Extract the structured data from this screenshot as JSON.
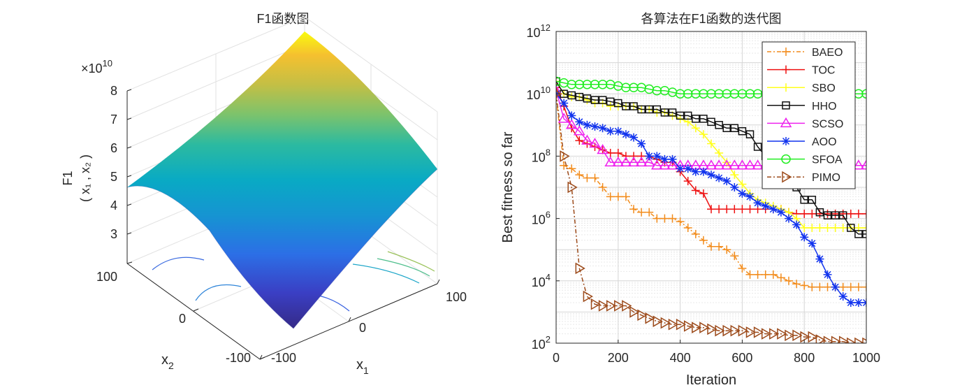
{
  "chart_data": [
    {
      "type": "surface",
      "title": "F1函数图",
      "xlabel": "x",
      "xlabel_sub": "1",
      "ylabel": "x",
      "ylabel_sub": "2",
      "zlabel_top": "F1",
      "zlabel_bottom": "( x₁ , x₂ )",
      "zscale": "×10",
      "zscale_exp": "10",
      "xticks": [
        "-100",
        "0",
        "100"
      ],
      "yticks": [
        "-100",
        "0",
        "100"
      ],
      "zticks": [
        "3",
        "4",
        "5",
        "6",
        "7",
        "8"
      ],
      "xlim": [
        -100,
        100
      ],
      "ylim": [
        -100,
        100
      ],
      "colormap": "parula"
    },
    {
      "type": "line",
      "title": "各算法在F1函数的迭代图",
      "xlabel": "Iteration",
      "ylabel": "Best fitness so far",
      "xlim": [
        0,
        1000
      ],
      "ylim_exp": [
        2,
        12
      ],
      "yscale": "log",
      "grid": true,
      "legend_position": "top-right",
      "xticks": [
        "0",
        "200",
        "400",
        "600",
        "800",
        "1000"
      ],
      "yticks": [
        {
          "base": "10",
          "exp": "2"
        },
        {
          "base": "10",
          "exp": "4"
        },
        {
          "base": "10",
          "exp": "6"
        },
        {
          "base": "10",
          "exp": "8"
        },
        {
          "base": "10",
          "exp": "10"
        },
        {
          "base": "10",
          "exp": "12"
        }
      ],
      "series": [
        {
          "name": "BAEO",
          "color": "#f28c1c",
          "marker": "plus",
          "dash": "6,3,2,3",
          "x": [
            0,
            25,
            50,
            75,
            100,
            125,
            150,
            175,
            200,
            225,
            250,
            275,
            300,
            325,
            350,
            375,
            400,
            425,
            450,
            475,
            500,
            525,
            550,
            575,
            600,
            625,
            650,
            675,
            700,
            725,
            750,
            775,
            800,
            825,
            850,
            875,
            900,
            925,
            950,
            975,
            1000
          ],
          "log10": [
            9.9,
            7.7,
            7.6,
            7.4,
            7.3,
            7.3,
            7.0,
            6.7,
            6.7,
            6.7,
            6.3,
            6.2,
            6.2,
            6.0,
            6.0,
            6.0,
            5.9,
            5.7,
            5.5,
            5.3,
            5.1,
            5.1,
            5.0,
            4.8,
            4.4,
            4.2,
            4.2,
            4.2,
            4.2,
            4.1,
            4.0,
            3.9,
            3.85,
            3.8,
            3.8,
            3.8,
            3.8,
            3.8,
            3.8,
            3.8,
            3.8
          ]
        },
        {
          "name": "TOC",
          "color": "#ee1111",
          "marker": "plus",
          "dash": "",
          "x": [
            0,
            25,
            50,
            75,
            100,
            125,
            150,
            175,
            200,
            225,
            250,
            275,
            300,
            325,
            350,
            375,
            400,
            425,
            450,
            475,
            500,
            525,
            550,
            575,
            600,
            625,
            650,
            675,
            700,
            725,
            750,
            775,
            800,
            825,
            850,
            875,
            900,
            925,
            950,
            975,
            1000
          ],
          "log10": [
            10.2,
            9.6,
            8.9,
            8.5,
            8.4,
            8.3,
            8.2,
            8.1,
            8.1,
            8.0,
            8.0,
            8.0,
            8.0,
            7.9,
            7.8,
            7.8,
            7.5,
            7.2,
            6.9,
            6.8,
            6.3,
            6.3,
            6.3,
            6.3,
            6.3,
            6.3,
            6.3,
            6.3,
            6.3,
            6.3,
            6.2,
            6.15,
            6.15,
            6.15,
            6.15,
            6.15,
            6.15,
            6.15,
            6.15,
            6.15,
            6.15
          ]
        },
        {
          "name": "SBO",
          "color": "#ffff1a",
          "marker": "plus",
          "dash": "",
          "x": [
            0,
            25,
            50,
            75,
            100,
            125,
            150,
            175,
            200,
            225,
            250,
            275,
            300,
            325,
            350,
            375,
            400,
            425,
            450,
            475,
            500,
            525,
            550,
            575,
            600,
            625,
            650,
            675,
            700,
            725,
            750,
            775,
            800,
            825,
            850,
            875,
            900,
            925,
            950,
            975,
            1000
          ],
          "log10": [
            10.4,
            10.0,
            9.9,
            9.9,
            9.8,
            9.7,
            9.7,
            9.6,
            9.6,
            9.6,
            9.6,
            9.5,
            9.5,
            9.4,
            9.4,
            9.3,
            9.2,
            9.1,
            8.9,
            8.7,
            8.4,
            8.1,
            7.8,
            7.4,
            7.1,
            6.8,
            6.6,
            6.5,
            6.4,
            6.3,
            6.2,
            6.0,
            5.7,
            5.7,
            5.7,
            5.7,
            5.7,
            5.7,
            5.7,
            5.7,
            5.7
          ]
        },
        {
          "name": "HHO",
          "color": "#111111",
          "marker": "square",
          "dash": "",
          "x": [
            0,
            25,
            50,
            75,
            100,
            125,
            150,
            175,
            200,
            225,
            250,
            275,
            300,
            325,
            350,
            375,
            400,
            425,
            450,
            475,
            500,
            525,
            550,
            575,
            600,
            625,
            650,
            675,
            700,
            725,
            750,
            775,
            800,
            825,
            850,
            875,
            900,
            925,
            950,
            975,
            1000
          ],
          "log10": [
            10.4,
            10.0,
            9.95,
            9.9,
            9.85,
            9.8,
            9.8,
            9.75,
            9.7,
            9.6,
            9.6,
            9.5,
            9.5,
            9.5,
            9.4,
            9.4,
            9.3,
            9.3,
            9.2,
            9.2,
            9.1,
            9.0,
            8.9,
            8.9,
            8.8,
            8.7,
            8.3,
            8.0,
            7.5,
            7.5,
            7.4,
            7.0,
            6.6,
            6.6,
            6.2,
            6.1,
            6.1,
            6.1,
            5.7,
            5.5,
            5.5
          ]
        },
        {
          "name": "SCSO",
          "color": "#ee22ee",
          "marker": "triangle",
          "dash": "",
          "x": [
            0,
            25,
            50,
            75,
            100,
            125,
            150,
            175,
            200,
            225,
            250,
            275,
            300,
            325,
            350,
            375,
            400,
            425,
            450,
            475,
            500,
            525,
            550,
            575,
            600,
            625,
            650,
            675,
            700,
            725,
            750,
            775,
            800,
            825,
            850,
            875,
            900,
            925,
            950,
            975,
            1000
          ],
          "log10": [
            10.1,
            9.2,
            9.0,
            8.8,
            8.5,
            8.4,
            8.2,
            7.8,
            7.8,
            7.8,
            7.8,
            7.8,
            7.8,
            7.7,
            7.7,
            7.7,
            7.7,
            7.7,
            7.7,
            7.7,
            7.7,
            7.7,
            7.7,
            7.7,
            7.7,
            7.7,
            7.7,
            7.7,
            7.7,
            7.7,
            7.7,
            7.7,
            7.7,
            7.7,
            7.7,
            7.7,
            7.7,
            7.7,
            7.7,
            7.7,
            7.7
          ]
        },
        {
          "name": "AOO",
          "color": "#1133ee",
          "marker": "star",
          "dash": "",
          "x": [
            0,
            25,
            50,
            75,
            100,
            125,
            150,
            175,
            200,
            225,
            250,
            275,
            300,
            325,
            350,
            375,
            400,
            425,
            450,
            475,
            500,
            525,
            550,
            575,
            600,
            625,
            650,
            675,
            700,
            725,
            750,
            775,
            800,
            825,
            850,
            875,
            900,
            925,
            950,
            975,
            1000
          ],
          "log10": [
            10.0,
            9.7,
            9.3,
            9.1,
            9.0,
            8.95,
            8.9,
            8.8,
            8.8,
            8.7,
            8.6,
            8.4,
            8.0,
            8.0,
            7.9,
            7.9,
            7.6,
            7.6,
            7.5,
            7.5,
            7.4,
            7.3,
            7.2,
            7.0,
            6.8,
            6.7,
            6.5,
            6.4,
            6.3,
            6.2,
            6.0,
            5.8,
            5.4,
            5.2,
            4.7,
            4.2,
            3.8,
            3.5,
            3.3,
            3.3,
            3.3
          ]
        },
        {
          "name": "SFOA",
          "color": "#22ee22",
          "marker": "circle",
          "dash": "",
          "x": [
            0,
            25,
            50,
            75,
            100,
            125,
            150,
            175,
            200,
            225,
            250,
            275,
            300,
            325,
            350,
            375,
            400,
            425,
            450,
            475,
            500,
            525,
            550,
            575,
            600,
            625,
            650,
            675,
            700,
            725,
            750,
            775,
            800,
            825,
            850,
            875,
            900,
            925,
            950,
            975,
            1000
          ],
          "log10": [
            10.4,
            10.35,
            10.3,
            10.3,
            10.3,
            10.3,
            10.3,
            10.3,
            10.25,
            10.2,
            10.2,
            10.2,
            10.15,
            10.1,
            10.1,
            10.05,
            10.0,
            10.0,
            10.0,
            10.0,
            10.0,
            10.0,
            10.0,
            10.0,
            10.0,
            10.0,
            10.0,
            10.0,
            10.0,
            10.0,
            10.0,
            10.0,
            10.0,
            10.0,
            10.0,
            10.0,
            10.0,
            10.0,
            10.0,
            10.0,
            10.0
          ]
        },
        {
          "name": "PIMO",
          "color": "#9c4a1a",
          "marker": "triangle-right",
          "dash": "6,3,2,3",
          "x": [
            0,
            25,
            50,
            75,
            100,
            125,
            150,
            175,
            200,
            225,
            250,
            275,
            300,
            325,
            350,
            375,
            400,
            425,
            450,
            475,
            500,
            525,
            550,
            575,
            600,
            625,
            650,
            675,
            700,
            725,
            750,
            775,
            800,
            825,
            850,
            875,
            900,
            925,
            950,
            975,
            1000
          ],
          "log10": [
            10.0,
            8.0,
            7.0,
            4.4,
            3.5,
            3.25,
            3.2,
            3.2,
            3.2,
            3.2,
            3.0,
            2.9,
            2.8,
            2.7,
            2.65,
            2.6,
            2.6,
            2.55,
            2.5,
            2.5,
            2.45,
            2.4,
            2.4,
            2.4,
            2.4,
            2.35,
            2.35,
            2.3,
            2.3,
            2.3,
            2.25,
            2.25,
            2.2,
            2.2,
            2.1,
            2.05,
            2.05,
            2.05,
            2.0,
            2.0,
            2.0
          ]
        }
      ]
    }
  ]
}
